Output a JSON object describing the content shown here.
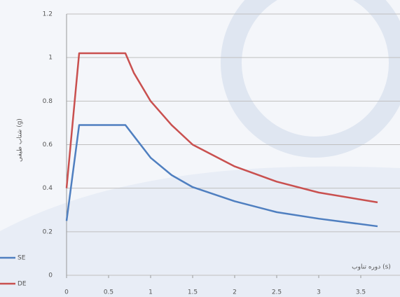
{
  "chart_data": {
    "type": "line",
    "x_label": "دوره تناوب (s)",
    "y_label": "شتاب طیفی (g)",
    "x": [
      0,
      0.15,
      0.7,
      0.8,
      1,
      1.25,
      1.5,
      2,
      2.5,
      3,
      3.7
    ],
    "series": [
      {
        "name": "SE",
        "color": "#4f7fc0",
        "values": [
          0.25,
          0.69,
          0.69,
          0.64,
          0.54,
          0.46,
          0.405,
          0.34,
          0.29,
          0.26,
          0.225
        ]
      },
      {
        "name": "DE",
        "color": "#c9504f",
        "values": [
          0.4,
          1.02,
          1.02,
          0.93,
          0.8,
          0.69,
          0.6,
          0.5,
          0.43,
          0.38,
          0.335
        ]
      }
    ],
    "xlim": [
      0,
      3.9
    ],
    "ylim": [
      0,
      1.2
    ],
    "xticks": [
      0,
      0.5,
      1,
      1.5,
      2,
      2.5,
      3,
      3.5
    ],
    "yticks": [
      0,
      0.2,
      0.4,
      0.6,
      0.8,
      1,
      1.2
    ],
    "grid": true
  }
}
